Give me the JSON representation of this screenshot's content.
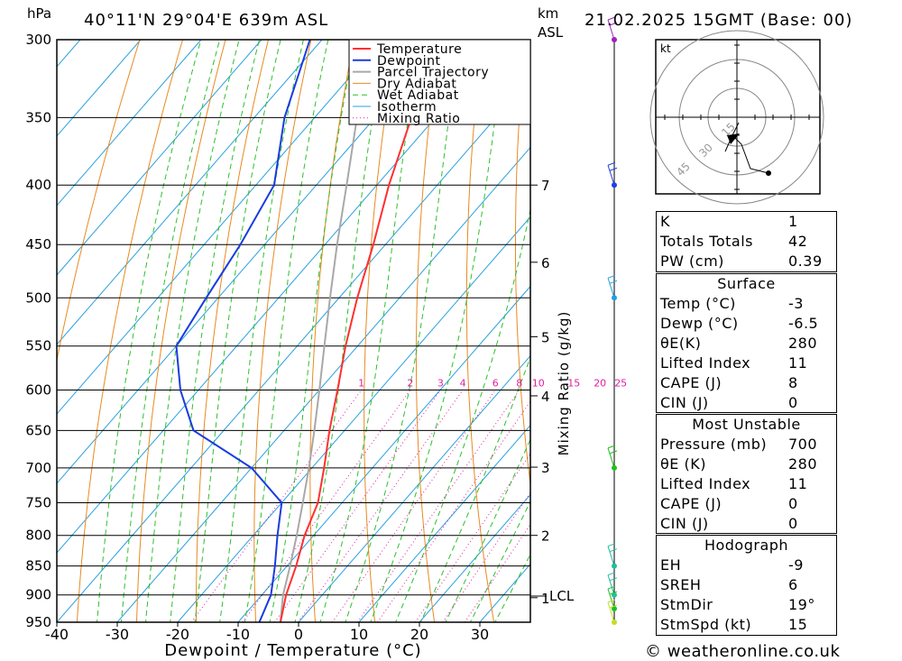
{
  "header": {
    "hpa_unit": "hPa",
    "location": "40°11'N 29°04'E 639m ASL",
    "km_unit": "km",
    "asl_unit": "ASL",
    "datetime": "21.02.2025 15GMT (Base: 00)"
  },
  "footer": {
    "copyright": "© weatheronline.co.uk"
  },
  "chart_data": {
    "type": "line",
    "title": "40°11'N 29°04'E 639m ASL",
    "xlabel": "Dewpoint / Temperature (°C)",
    "ylabel": "hPa",
    "xlim": [
      -40,
      38
    ],
    "x_ticks": [
      -40,
      -30,
      -20,
      -10,
      0,
      10,
      20,
      30
    ],
    "x_tick_labels": [
      "-40",
      "-30",
      "-20",
      "-10",
      "0",
      "10",
      "20",
      "30"
    ],
    "pressure_levels": [
      300,
      350,
      400,
      450,
      500,
      550,
      600,
      650,
      700,
      750,
      800,
      850,
      900,
      950
    ],
    "pressure_labels": [
      "300",
      "350",
      "400",
      "450",
      "500",
      "550",
      "600",
      "650",
      "700",
      "750",
      "800",
      "850",
      "900",
      "950"
    ],
    "km_ticks": [
      {
        "label": "7",
        "p": 400
      },
      {
        "label": "6",
        "p": 466
      },
      {
        "label": "5",
        "p": 540
      },
      {
        "label": "4",
        "p": 607
      },
      {
        "label": "3",
        "p": 699
      },
      {
        "label": "2",
        "p": 800
      },
      {
        "label": "1",
        "p": 905
      }
    ],
    "lcl_label": "LCL",
    "lcl_p": 902,
    "mixing_ratio_axis_label": "Mixing Ratio (g/kg)",
    "mixing_ratio_labels": [
      "1",
      "2",
      "3",
      "4",
      "6",
      "8",
      "10",
      "15",
      "20",
      "25"
    ],
    "legend": [
      "Temperature",
      "Dewpoint",
      "Parcel Trajectory",
      "Dry Adiabat",
      "Wet Adiabat",
      "Isotherm",
      "Mixing Ratio"
    ],
    "legend_position": "top-right",
    "colors": {
      "temperature": "#ff3030",
      "dewpoint": "#1a3be0",
      "parcel": "#a8a8a8",
      "dry_adiabat": "#e88a20",
      "wet_adiabat": "#2cc02c",
      "isotherm": "#2aa0e0",
      "mixing_ratio": "#e020a0",
      "text": "#000000"
    },
    "series": [
      {
        "name": "Temperature",
        "points": [
          [
            950,
            -3
          ],
          [
            900,
            -6
          ],
          [
            850,
            -8.5
          ],
          [
            800,
            -11.5
          ],
          [
            750,
            -14
          ],
          [
            700,
            -18
          ],
          [
            650,
            -22.5
          ],
          [
            600,
            -27
          ],
          [
            550,
            -32
          ],
          [
            500,
            -37
          ],
          [
            450,
            -42
          ],
          [
            400,
            -48
          ],
          [
            350,
            -54
          ],
          [
            300,
            -57
          ]
        ]
      },
      {
        "name": "Dewpoint",
        "points": [
          [
            950,
            -6.5
          ],
          [
            900,
            -8.5
          ],
          [
            850,
            -12
          ],
          [
            800,
            -16
          ],
          [
            750,
            -20
          ],
          [
            700,
            -30
          ],
          [
            650,
            -45
          ],
          [
            600,
            -53
          ],
          [
            550,
            -60
          ],
          [
            500,
            -62
          ],
          [
            450,
            -64
          ],
          [
            400,
            -67
          ],
          [
            350,
            -75
          ],
          [
            300,
            -82
          ]
        ]
      },
      {
        "name": "Parcel Trajectory",
        "points": [
          [
            950,
            -3
          ],
          [
            900,
            -6.5
          ],
          [
            850,
            -9.5
          ],
          [
            800,
            -12.8
          ],
          [
            750,
            -16.5
          ],
          [
            700,
            -20.5
          ],
          [
            650,
            -25
          ],
          [
            600,
            -30
          ],
          [
            550,
            -35.5
          ],
          [
            500,
            -41.5
          ],
          [
            450,
            -48
          ],
          [
            400,
            -55
          ],
          [
            350,
            -63
          ],
          [
            300,
            -72
          ]
        ]
      }
    ],
    "wind_dots": [
      {
        "p": 300,
        "color": "#a020c0"
      },
      {
        "p": 400,
        "color": "#2040e0"
      },
      {
        "p": 500,
        "color": "#20a0e0"
      },
      {
        "p": 700,
        "color": "#20c020"
      },
      {
        "p": 850,
        "color": "#20c0a0"
      },
      {
        "p": 900,
        "color": "#20c0a0"
      },
      {
        "p": 925,
        "color": "#20c020"
      },
      {
        "p": 950,
        "color": "#c0e020"
      }
    ]
  },
  "hodograph": {
    "unit": "kt",
    "rings": [
      "15",
      "30",
      "45"
    ]
  },
  "indices": {
    "general": [
      {
        "key": "K",
        "value": "1"
      },
      {
        "key": "Totals Totals",
        "value": "42"
      },
      {
        "key": "PW (cm)",
        "value": "0.39"
      }
    ],
    "surface_title": "Surface",
    "surface": [
      {
        "key": "Temp (°C)",
        "value": "-3"
      },
      {
        "key": "Dewp (°C)",
        "value": "-6.5"
      },
      {
        "key": "θE(K)",
        "value": "280"
      },
      {
        "key": "Lifted Index",
        "value": "11"
      },
      {
        "key": "CAPE (J)",
        "value": "8"
      },
      {
        "key": "CIN (J)",
        "value": "0"
      }
    ],
    "unstable_title": "Most Unstable",
    "unstable": [
      {
        "key": "Pressure (mb)",
        "value": "700"
      },
      {
        "key": "θE (K)",
        "value": "280"
      },
      {
        "key": "Lifted Index",
        "value": "11"
      },
      {
        "key": "CAPE (J)",
        "value": "0"
      },
      {
        "key": "CIN (J)",
        "value": "0"
      }
    ],
    "hodo_title": "Hodograph",
    "hodo": [
      {
        "key": "EH",
        "value": "-9"
      },
      {
        "key": "SREH",
        "value": "6"
      },
      {
        "key": "StmDir",
        "value": "19°"
      },
      {
        "key": "StmSpd (kt)",
        "value": "15"
      }
    ]
  }
}
